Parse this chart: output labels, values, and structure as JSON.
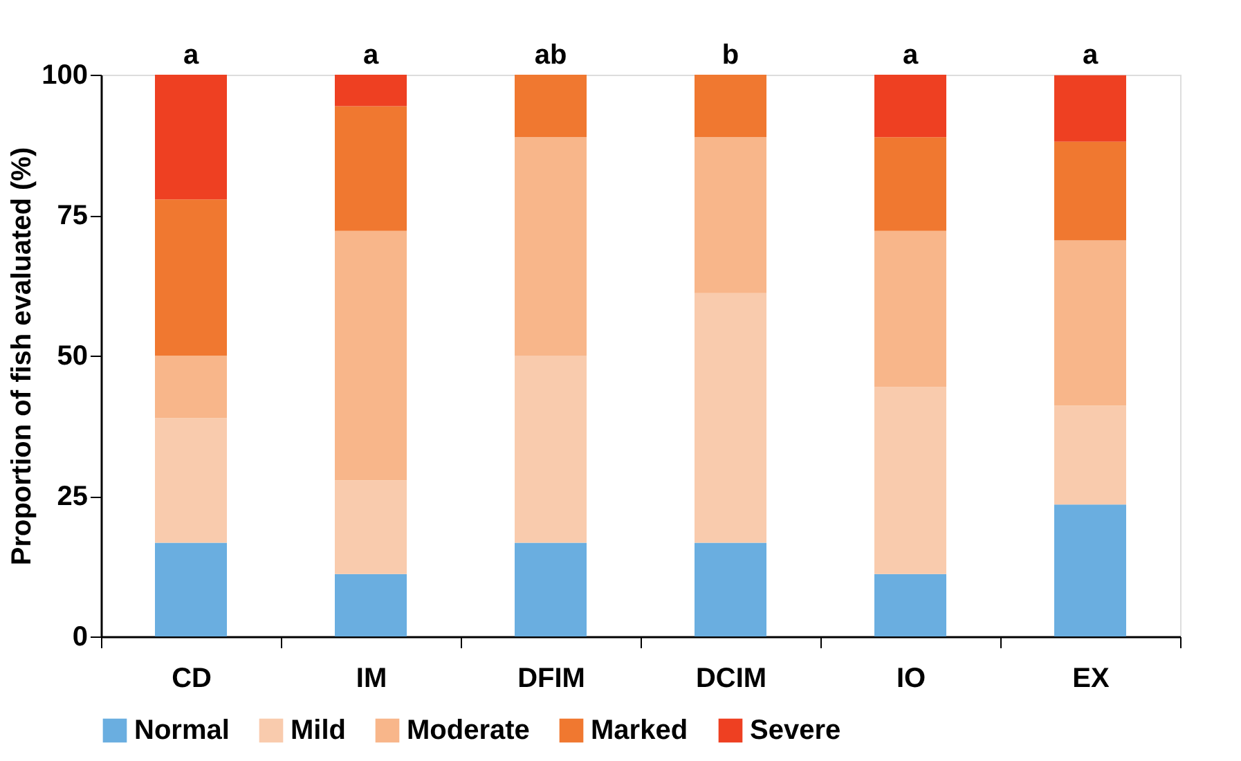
{
  "chart_data": {
    "type": "bar",
    "stacked": true,
    "ylabel": "Proportion of fish evaluated (%)",
    "categories": [
      "CD",
      "IM",
      "DFIM",
      "DCIM",
      "IO",
      "EX"
    ],
    "series": [
      {
        "name": "Normal",
        "color": "#6aaee0",
        "values": [
          16.7,
          11.1,
          16.7,
          16.7,
          11.1,
          23.5
        ]
      },
      {
        "name": "Mild",
        "color": "#f9cbad",
        "values": [
          22.2,
          16.7,
          33.3,
          44.4,
          33.3,
          17.6
        ]
      },
      {
        "name": "Moderate",
        "color": "#f8b68a",
        "values": [
          11.1,
          44.4,
          38.9,
          27.8,
          27.8,
          29.4
        ]
      },
      {
        "name": "Marked",
        "color": "#f07830",
        "values": [
          27.8,
          22.2,
          11.1,
          11.1,
          16.7,
          17.6
        ]
      },
      {
        "name": "Severe",
        "color": "#ee4022",
        "values": [
          22.2,
          5.6,
          0,
          0,
          11.1,
          11.8
        ]
      }
    ],
    "ylim": [
      0,
      100
    ],
    "yticks": [
      0,
      25,
      50,
      75,
      100
    ],
    "grid": false,
    "legend": "bottom",
    "annotations": [
      {
        "text": "a",
        "x": "CD",
        "y": 100
      },
      {
        "text": "a",
        "x": "IM",
        "y": 100
      },
      {
        "text": "ab",
        "x": "DFIM",
        "y": 100
      },
      {
        "text": "b",
        "x": "DCIM",
        "y": 100
      },
      {
        "text": "a",
        "x": "IO",
        "y": 100
      },
      {
        "text": "a",
        "x": "EX",
        "y": 100
      }
    ]
  }
}
